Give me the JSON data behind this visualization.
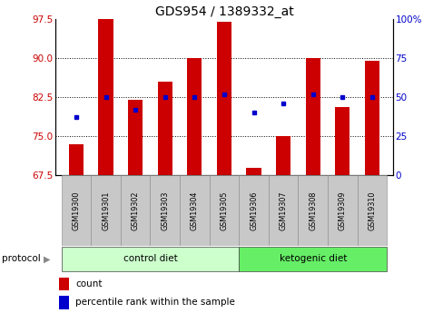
{
  "title": "GDS954 / 1389332_at",
  "samples": [
    "GSM19300",
    "GSM19301",
    "GSM19302",
    "GSM19303",
    "GSM19304",
    "GSM19305",
    "GSM19306",
    "GSM19307",
    "GSM19308",
    "GSM19309",
    "GSM19310"
  ],
  "counts": [
    73.5,
    97.5,
    82.0,
    85.5,
    90.0,
    97.0,
    69.0,
    75.0,
    90.0,
    80.5,
    89.5
  ],
  "percentile_ranks": [
    37,
    50,
    42,
    50,
    50,
    52,
    40,
    46,
    52,
    50,
    50
  ],
  "ylim_left": [
    67.5,
    97.5
  ],
  "ylim_right": [
    0,
    100
  ],
  "yticks_left": [
    67.5,
    75,
    82.5,
    90,
    97.5
  ],
  "yticks_right": [
    0,
    25,
    50,
    75,
    100
  ],
  "ytick_labels_right": [
    "0",
    "25",
    "50",
    "75",
    "100%"
  ],
  "grid_values": [
    75,
    82.5,
    90
  ],
  "groups": [
    {
      "label": "control diet",
      "indices": [
        0,
        1,
        2,
        3,
        4,
        5
      ],
      "color": "#ccffcc"
    },
    {
      "label": "ketogenic diet",
      "indices": [
        6,
        7,
        8,
        9,
        10
      ],
      "color": "#66ee66"
    }
  ],
  "group_row_label": "protocol",
  "bar_color": "#cc0000",
  "dot_color": "#0000cc",
  "bar_width": 0.5,
  "tick_label_color_left": "#cc0000",
  "tick_label_color_right": "#0000cc",
  "legend_count_label": "count",
  "legend_pct_label": "percentile rank within the sample",
  "base_value": 67.5,
  "sample_box_color": "#c8c8c8",
  "title_fontsize": 10
}
